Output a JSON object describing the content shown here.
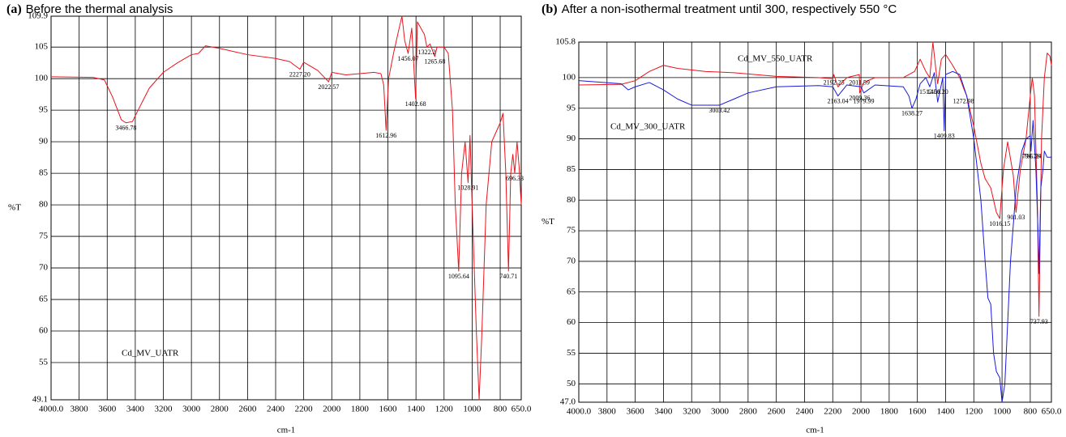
{
  "chart_data": [
    {
      "type": "line",
      "panel": "(a)",
      "title": "Before the thermal analysis",
      "xlabel": "cm-1",
      "ylabel": "%T",
      "xlim": [
        4000,
        650
      ],
      "ylim": [
        49.1,
        109.9
      ],
      "xticks": [
        {
          "value": 4000,
          "label": "4000.0"
        },
        3800,
        3600,
        3400,
        3200,
        3000,
        2800,
        2600,
        2400,
        2200,
        2000,
        1800,
        1600,
        1400,
        1200,
        1000,
        800,
        {
          "value": 650,
          "label": "650.0"
        }
      ],
      "yticks": [
        49.1,
        55,
        60,
        65,
        70,
        75,
        80,
        85,
        90,
        95,
        100,
        105,
        109.9
      ],
      "grid": true,
      "series": [
        {
          "name": "Cd_MV_UATR",
          "color": "#e8141c",
          "x": [
            4000,
            3700,
            3620,
            3560,
            3500,
            3466.78,
            3420,
            3380,
            3300,
            3200,
            3100,
            3000,
            2950,
            2900,
            2800,
            2600,
            2400,
            2300,
            2227.2,
            2200,
            2100,
            2022.57,
            2000,
            1900,
            1800,
            1700,
            1650,
            1630,
            1612.96,
            1595,
            1560,
            1520,
            1500,
            1480,
            1456.07,
            1430,
            1402.68,
            1390,
            1340,
            1322.2,
            1300,
            1265.68,
            1250,
            1200,
            1170,
            1140,
            1120,
            1095.64,
            1075,
            1050,
            1028.91,
            1015,
            1000,
            970,
            950,
            930,
            900,
            860,
            800,
            780,
            760,
            740.71,
            725,
            710,
            696.33,
            680,
            665,
            650
          ],
          "values": [
            100.3,
            100.2,
            99.8,
            97,
            93.5,
            93,
            93.2,
            95,
            98.5,
            101,
            102.5,
            103.8,
            104,
            105.2,
            104.8,
            103.8,
            103.2,
            102.7,
            101.5,
            102.6,
            101.3,
            99.5,
            101,
            100.6,
            100.8,
            101,
            100.8,
            99,
            91.8,
            100,
            104,
            108,
            109.9,
            106,
            104,
            108,
            96.8,
            109,
            107,
            105,
            105.5,
            103.5,
            105,
            105,
            104,
            95,
            80,
            69.5,
            85,
            90,
            83.5,
            91,
            80,
            60,
            49.1,
            60,
            80,
            90,
            93,
            94.5,
            85,
            69.5,
            85,
            88,
            85,
            90,
            86,
            80
          ]
        }
      ],
      "annotations": [
        {
          "x": 3466.78,
          "y": 93,
          "label": "3466.78"
        },
        {
          "x": 2227.2,
          "y": 101.5,
          "label": "2227.20"
        },
        {
          "x": 2022.57,
          "y": 99.5,
          "label": "2022.57"
        },
        {
          "x": 1612.96,
          "y": 91.8,
          "label": "1612.96"
        },
        {
          "x": 1456.07,
          "y": 104,
          "label": "1456.07"
        },
        {
          "x": 1402.68,
          "y": 96.8,
          "label": "1402.68"
        },
        {
          "x": 1322.2,
          "y": 105,
          "label": "1322.2"
        },
        {
          "x": 1265.68,
          "y": 103.5,
          "label": "1265.68"
        },
        {
          "x": 1095.64,
          "y": 69.5,
          "label": "1095.64"
        },
        {
          "x": 1028.91,
          "y": 83.5,
          "label": "1028.91"
        },
        {
          "x": 740.71,
          "y": 69.5,
          "label": "740.71"
        },
        {
          "x": 696.33,
          "y": 85,
          "label": "696.33"
        }
      ]
    },
    {
      "type": "line",
      "panel": "(b)",
      "title": "After a non-isothermal treatment until 300, respectively 550 °C",
      "xlabel": "cm-1",
      "ylabel": "%T",
      "xlim": [
        4000,
        650
      ],
      "ylim": [
        47.0,
        105.8
      ],
      "xticks": [
        {
          "value": 4000,
          "label": "4000.0"
        },
        3800,
        3600,
        3400,
        3200,
        3000,
        2800,
        2600,
        2400,
        2200,
        2000,
        1800,
        1600,
        1400,
        1200,
        1000,
        800,
        {
          "value": 650,
          "label": "650.0"
        }
      ],
      "yticks": [
        {
          "value": 47,
          "label": "47.0"
        },
        50,
        55,
        60,
        65,
        70,
        75,
        80,
        85,
        90,
        95,
        100,
        105.8
      ],
      "grid": true,
      "series": [
        {
          "name": "Cd_MV_550_UATR",
          "color": "#e8141c",
          "x": [
            4000,
            3700,
            3600,
            3500,
            3400,
            3300,
            3100,
            2900,
            2600,
            2300,
            2200,
            2192.25,
            2163.04,
            2100,
            2011.59,
            2009.36,
            1979.99,
            1900,
            1700,
            1620,
            1580,
            1540,
            1512.01,
            1490,
            1470,
            1456.2,
            1430,
            1400,
            1350,
            1300,
            1272.98,
            1250,
            1200,
            1150,
            1120,
            1080,
            1040,
            1016.15,
            990,
            960,
            920,
            901.03,
            870,
            830,
            800,
            785.24,
            770,
            750,
            737.93,
            720,
            700,
            680,
            660,
            650
          ],
          "values": [
            98.8,
            98.9,
            99.5,
            101,
            102,
            101.5,
            101,
            100.8,
            100.2,
            100,
            99.8,
            100.5,
            98.5,
            100,
            100.5,
            97.5,
            99.2,
            100,
            100,
            101,
            103,
            101,
            100,
            105.8,
            101.5,
            99,
            103,
            103.8,
            102,
            100,
            98.3,
            97,
            92,
            86,
            83.5,
            82,
            78,
            77,
            85,
            89.5,
            84,
            78,
            85,
            90,
            97,
            100,
            97,
            80,
            61,
            90,
            100,
            104,
            103.5,
            102
          ]
        },
        {
          "name": "Cd_MV_300_UATR",
          "color": "#1a1adc",
          "x": [
            4000,
            3700,
            3650,
            3600,
            3500,
            3400,
            3300,
            3200,
            3003.42,
            2900,
            2800,
            2600,
            2300,
            2200,
            2163.04,
            2100,
            2000,
            1979.99,
            1900,
            1700,
            1660,
            1638.27,
            1610,
            1580,
            1540,
            1512.01,
            1480,
            1456.2,
            1420,
            1409.83,
            1400,
            1350,
            1300,
            1250,
            1200,
            1150,
            1120,
            1100,
            1080,
            1060,
            1040,
            1016.15,
            1000,
            980,
            960,
            940,
            900,
            860,
            830,
            800,
            794.78,
            780,
            760,
            745,
            737.93,
            725,
            710,
            700,
            680,
            650
          ],
          "values": [
            99.5,
            99,
            98,
            98.5,
            99.2,
            98,
            96.5,
            95.5,
            95.5,
            96.5,
            97.5,
            98.5,
            98.7,
            98.5,
            97,
            98.8,
            98.5,
            97.5,
            98.8,
            98.5,
            97,
            95,
            96.5,
            99,
            100,
            98.5,
            100.8,
            96,
            100,
            91.3,
            100.5,
            101,
            100.5,
            97,
            90,
            80,
            70,
            64,
            63,
            55,
            52,
            51,
            47,
            50,
            60,
            70,
            82,
            88,
            90,
            90.5,
            88,
            93,
            85,
            75,
            68,
            82,
            85,
            88,
            87,
            87
          ]
        }
      ],
      "annotations": [
        {
          "x": 2192.25,
          "y": 100,
          "label": "2192.25"
        },
        {
          "x": 2163.04,
          "y": 97,
          "label": "2163.04"
        },
        {
          "x": 2011.59,
          "y": 100,
          "label": "2011.59"
        },
        {
          "x": 2009.36,
          "y": 97.5,
          "label": "2009.36"
        },
        {
          "x": 1979.99,
          "y": 97,
          "label": "1979.99"
        },
        {
          "x": 1638.27,
          "y": 95,
          "label": "1638.27"
        },
        {
          "x": 1512.01,
          "y": 98.5,
          "label": "1512.01"
        },
        {
          "x": 1456.2,
          "y": 98.5,
          "label": "1456.20"
        },
        {
          "x": 1409.83,
          "y": 91.3,
          "label": "1409.83"
        },
        {
          "x": 1272.98,
          "y": 97,
          "label": "1272.98"
        },
        {
          "x": 3003.42,
          "y": 95.5,
          "label": "3003.42"
        },
        {
          "x": 1016.15,
          "y": 77,
          "label": "1016.15"
        },
        {
          "x": 901.03,
          "y": 78,
          "label": "901.03"
        },
        {
          "x": 794.78,
          "y": 88,
          "label": "794.78"
        },
        {
          "x": 785.24,
          "y": 88,
          "label": "785.24"
        },
        {
          "x": 737.93,
          "y": 61,
          "label": "737.93"
        }
      ]
    }
  ]
}
